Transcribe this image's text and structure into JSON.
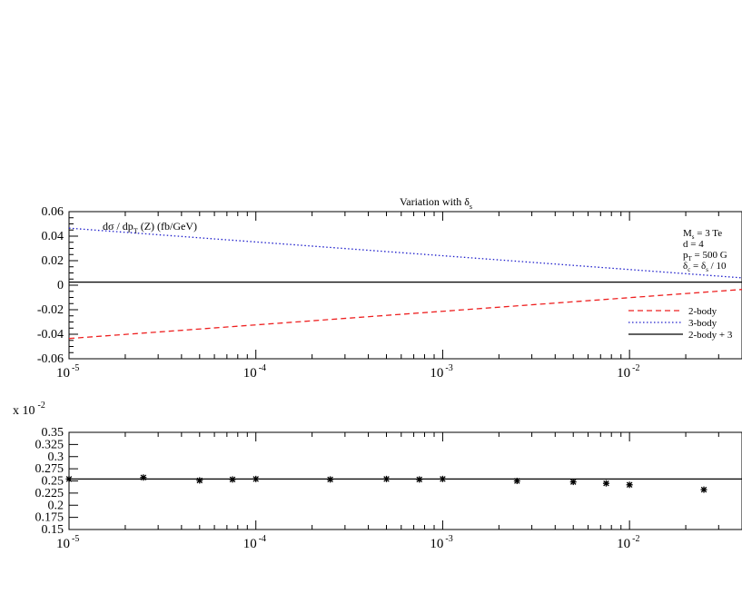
{
  "chart_data": [
    {
      "type": "line",
      "title": "Variation with δ",
      "title_subscript": "s",
      "ylabel": "dσ / dp",
      "ylabel_subscript": "T",
      "ylabel_rest": " (Z) (fb/GeV)",
      "xscale": "log",
      "xlim": [
        1e-05,
        0.04
      ],
      "ylim": [
        -0.06,
        0.06
      ],
      "yticks": [
        "0.06",
        "0.04",
        "0.02",
        "0",
        "-0.02",
        "-0.04",
        "-0.06"
      ],
      "xticks": [
        {
          "base": "10",
          "exp": "-5"
        },
        {
          "base": "10",
          "exp": "-4"
        },
        {
          "base": "10",
          "exp": "-3"
        },
        {
          "base": "10",
          "exp": "-2"
        }
      ],
      "annotations": [
        {
          "pre": "M",
          "sub": "s",
          "post": " = 3 Te"
        },
        {
          "pre": "d = 4",
          "sub": "",
          "post": ""
        },
        {
          "pre": "p",
          "sub": "T",
          "post": " = 500 G"
        },
        {
          "pre": "δ",
          "sub": "c",
          "post": " = δ",
          "sub2": "s",
          "post2": " / 10"
        }
      ],
      "legend_position": "bottom-right",
      "series": [
        {
          "name": "2-body",
          "color": "#ee2020",
          "dash": "dashed",
          "x": [
            1e-05,
            0.04
          ],
          "y": [
            -0.0435,
            -0.0035
          ]
        },
        {
          "name": "3-body",
          "color": "#2020cc",
          "dash": "dotted",
          "x": [
            1e-05,
            0.04
          ],
          "y": [
            0.0465,
            0.006
          ]
        },
        {
          "name": "2-body + 3",
          "color": "#000000",
          "dash": "solid",
          "x": [
            1e-05,
            0.04
          ],
          "y": [
            0.0025,
            0.0025
          ]
        }
      ]
    },
    {
      "type": "scatter",
      "multiplier_label": "x 10",
      "multiplier_exp": "-2",
      "xscale": "log",
      "xlim": [
        1e-05,
        0.04
      ],
      "ylim": [
        0.15,
        0.35
      ],
      "yticks": [
        "0.35",
        "0.325",
        "0.3",
        "0.275",
        "0.25",
        "0.225",
        "0.2",
        "0.175",
        "0.15"
      ],
      "xticks": [
        {
          "base": "10",
          "exp": "-5"
        },
        {
          "base": "10",
          "exp": "-4"
        },
        {
          "base": "10",
          "exp": "-3"
        },
        {
          "base": "10",
          "exp": "-2"
        }
      ],
      "reference_line": 0.254,
      "series": [
        {
          "name": "",
          "marker": "asterisk",
          "x": [
            1e-05,
            2.5e-05,
            5e-05,
            7.5e-05,
            0.0001,
            0.00025,
            0.0005,
            0.00075,
            0.001,
            0.0025,
            0.005,
            0.0075,
            0.01,
            0.025
          ],
          "y": [
            0.254,
            0.257,
            0.251,
            0.253,
            0.254,
            0.253,
            0.254,
            0.253,
            0.254,
            0.25,
            0.248,
            0.245,
            0.242,
            0.232
          ]
        }
      ]
    }
  ]
}
